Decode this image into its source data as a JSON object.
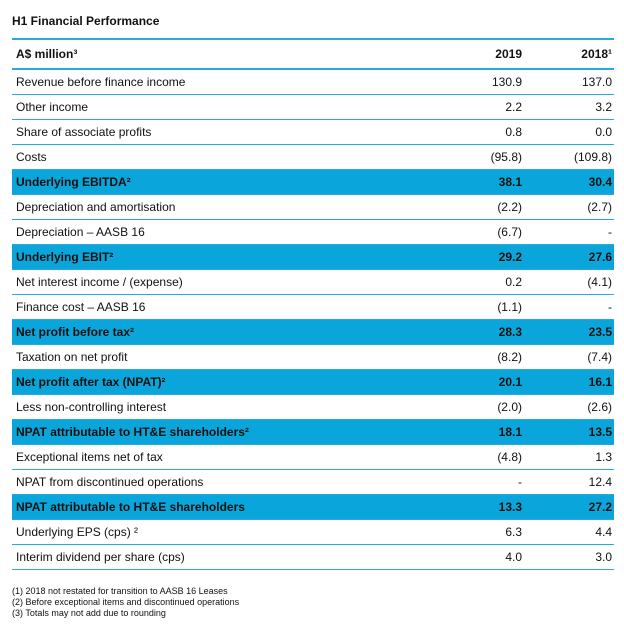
{
  "title": "H1 Financial Performance",
  "header": {
    "label": "A$ million³",
    "col1": "2019",
    "col2": "2018¹"
  },
  "rows": [
    {
      "label": "Revenue before finance income",
      "v1": "130.9",
      "v2": "137.0",
      "highlight": false
    },
    {
      "label": "Other income",
      "v1": "2.2",
      "v2": "3.2",
      "highlight": false
    },
    {
      "label": "Share of associate profits",
      "v1": "0.8",
      "v2": "0.0",
      "highlight": false
    },
    {
      "label": "Costs",
      "v1": "(95.8)",
      "v2": "(109.8)",
      "highlight": false
    },
    {
      "label": "Underlying EBITDA²",
      "v1": "38.1",
      "v2": "30.4",
      "highlight": true
    },
    {
      "label": "Depreciation and amortisation",
      "v1": "(2.2)",
      "v2": "(2.7)",
      "highlight": false
    },
    {
      "label": "Depreciation – AASB 16",
      "v1": "(6.7)",
      "v2": "-",
      "highlight": false
    },
    {
      "label": "Underlying EBIT²",
      "v1": "29.2",
      "v2": "27.6",
      "highlight": true
    },
    {
      "label": "Net interest income / (expense)",
      "v1": "0.2",
      "v2": "(4.1)",
      "highlight": false
    },
    {
      "label": "Finance cost – AASB 16",
      "v1": "(1.1)",
      "v2": "-",
      "highlight": false
    },
    {
      "label": "Net profit before tax²",
      "v1": "28.3",
      "v2": "23.5",
      "highlight": true
    },
    {
      "label": "Taxation on net profit",
      "v1": "(8.2)",
      "v2": "(7.4)",
      "highlight": false
    },
    {
      "label": "Net profit after tax (NPAT)²",
      "v1": "20.1",
      "v2": "16.1",
      "highlight": true
    },
    {
      "label": "Less non-controlling interest",
      "v1": "(2.0)",
      "v2": "(2.6)",
      "highlight": false
    },
    {
      "label": "NPAT attributable to HT&E shareholders²",
      "v1": "18.1",
      "v2": "13.5",
      "highlight": true
    },
    {
      "label": "Exceptional items net of tax",
      "v1": "(4.8)",
      "v2": "1.3",
      "highlight": false
    },
    {
      "label": "NPAT from discontinued operations",
      "v1": "-",
      "v2": "12.4",
      "highlight": false
    },
    {
      "label": "NPAT attributable to HT&E shareholders",
      "v1": "13.3",
      "v2": "27.2",
      "highlight": true
    },
    {
      "label": "Underlying EPS (cps) ²",
      "v1": "6.3",
      "v2": "4.4",
      "highlight": false
    },
    {
      "label": "Interim dividend per share (cps)",
      "v1": "4.0",
      "v2": "3.0",
      "highlight": false
    }
  ],
  "notes": [
    "(1)  2018 not restated for transition to AASB 16 Leases",
    "(2)  Before exceptional items and discontinued operations",
    "(3)  Totals may not add due to rounding"
  ],
  "colors": {
    "accent": "#29a9dc",
    "highlight_bg": "#0aa6db"
  }
}
